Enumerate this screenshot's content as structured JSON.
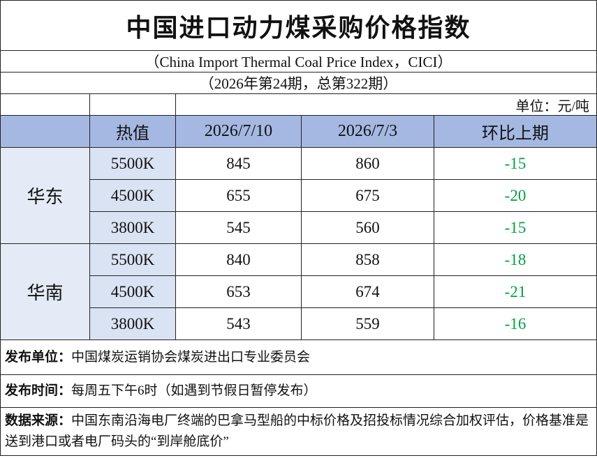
{
  "header": {
    "title": "中国进口动力煤采购价格指数",
    "subtitle": "（China Import Thermal Coal Price Index，CICI）",
    "issue": "（2026年第24期，总第322期）",
    "unit": "单位：元/吨"
  },
  "table": {
    "columns": [
      "热值",
      "2026/7/10",
      "2026/7/3",
      "环比上期"
    ],
    "regions": [
      {
        "name": "华东",
        "rows": [
          [
            "5500K",
            845,
            860,
            -15
          ],
          [
            "4500K",
            655,
            675,
            -20
          ],
          [
            "3800K",
            545,
            560,
            -15
          ]
        ]
      },
      {
        "name": "华南",
        "rows": [
          [
            "5500K",
            840,
            858,
            -18
          ],
          [
            "4500K",
            653,
            674,
            -21
          ],
          [
            "3800K",
            543,
            559,
            -16
          ]
        ]
      }
    ]
  },
  "notes": [
    {
      "label": "发布单位：",
      "text": "中国煤炭运销协会煤炭进出口专业委员会"
    },
    {
      "label": "发布时间：",
      "text": "每周五下午6时（如遇到节假日暂停发布）"
    },
    {
      "label": "数据来源：",
      "text": "中国东南沿海电厂终端的巴拿马型船的中标价格及招投标情况综合加权评估，价格基准是送到港口或者电厂码头的“到岸舱底价”"
    }
  ]
}
